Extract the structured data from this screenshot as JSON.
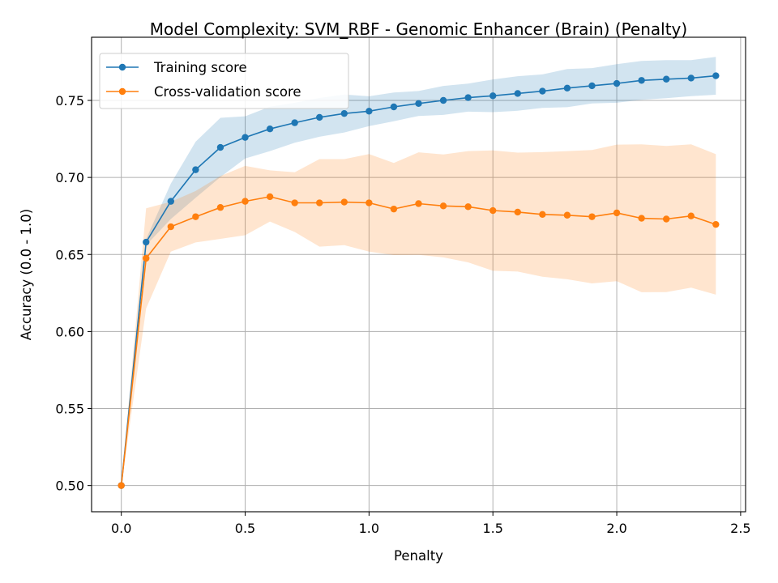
{
  "chart_data": {
    "type": "line",
    "title": "Model Complexity: SVM_RBF - Genomic Enhancer (Brain) (Penalty)",
    "xlabel": "Penalty",
    "ylabel": "Accuracy (0.0 - 1.0)",
    "xlim": [
      -0.12,
      2.52
    ],
    "ylim": [
      0.483,
      0.791
    ],
    "xticks": [
      0.0,
      0.5,
      1.0,
      1.5,
      2.0,
      2.5
    ],
    "xtick_labels": [
      "0.0",
      "0.5",
      "1.0",
      "1.5",
      "2.0",
      "2.5"
    ],
    "yticks": [
      0.5,
      0.55,
      0.6,
      0.65,
      0.7,
      0.75
    ],
    "ytick_labels": [
      "0.50",
      "0.55",
      "0.60",
      "0.65",
      "0.70",
      "0.75"
    ],
    "grid": true,
    "legend_position": "top-left",
    "x": [
      0.0,
      0.1,
      0.2,
      0.3,
      0.4,
      0.5,
      0.6,
      0.7,
      0.8,
      0.9,
      1.0,
      1.1,
      1.2,
      1.3,
      1.4,
      1.5,
      1.6,
      1.7,
      1.8,
      1.9,
      2.0,
      2.1,
      2.2,
      2.3,
      2.4
    ],
    "series": [
      {
        "name": "Training score",
        "color": "#1f77b4",
        "band_color": "#1f77b4",
        "values": [
          0.5,
          0.658,
          0.6845,
          0.705,
          0.7195,
          0.726,
          0.7315,
          0.7355,
          0.739,
          0.7415,
          0.743,
          0.7458,
          0.748,
          0.75,
          0.7518,
          0.753,
          0.7545,
          0.756,
          0.758,
          0.7595,
          0.761,
          0.763,
          0.7638,
          0.7645,
          0.766
        ],
        "upper": [
          0.5,
          0.66,
          0.696,
          0.7232,
          0.7387,
          0.7397,
          0.7459,
          0.7485,
          0.7516,
          0.7538,
          0.7527,
          0.7551,
          0.7561,
          0.7594,
          0.7609,
          0.7636,
          0.7657,
          0.7669,
          0.7704,
          0.771,
          0.7735,
          0.7756,
          0.7762,
          0.7762,
          0.7783
        ],
        "lower": [
          0.5,
          0.656,
          0.673,
          0.6868,
          0.7003,
          0.7123,
          0.7171,
          0.7225,
          0.7264,
          0.7292,
          0.7333,
          0.7365,
          0.7399,
          0.7406,
          0.7427,
          0.7424,
          0.7433,
          0.7451,
          0.7456,
          0.748,
          0.7485,
          0.7504,
          0.7514,
          0.7528,
          0.7537
        ]
      },
      {
        "name": "Cross-validation score",
        "color": "#ff7f0e",
        "band_color": "#ff7f0e",
        "values": [
          0.5,
          0.6475,
          0.668,
          0.6745,
          0.6805,
          0.6845,
          0.6875,
          0.6835,
          0.6835,
          0.684,
          0.6835,
          0.6795,
          0.683,
          0.6815,
          0.681,
          0.6785,
          0.6775,
          0.676,
          0.6755,
          0.6745,
          0.677,
          0.6735,
          0.673,
          0.675,
          0.6695
        ],
        "upper": [
          0.5,
          0.68,
          0.6842,
          0.6912,
          0.7009,
          0.7075,
          0.7046,
          0.7034,
          0.7119,
          0.7119,
          0.7152,
          0.7094,
          0.7163,
          0.7149,
          0.7171,
          0.7176,
          0.7161,
          0.7164,
          0.7171,
          0.7178,
          0.7213,
          0.7215,
          0.7204,
          0.7215,
          0.7151
        ],
        "lower": [
          0.5,
          0.615,
          0.6518,
          0.6578,
          0.6601,
          0.6625,
          0.6714,
          0.6646,
          0.6551,
          0.6561,
          0.6518,
          0.6496,
          0.6497,
          0.6481,
          0.6449,
          0.6394,
          0.6389,
          0.6356,
          0.6339,
          0.6312,
          0.6327,
          0.6255,
          0.6256,
          0.6285,
          0.6239
        ]
      }
    ]
  }
}
